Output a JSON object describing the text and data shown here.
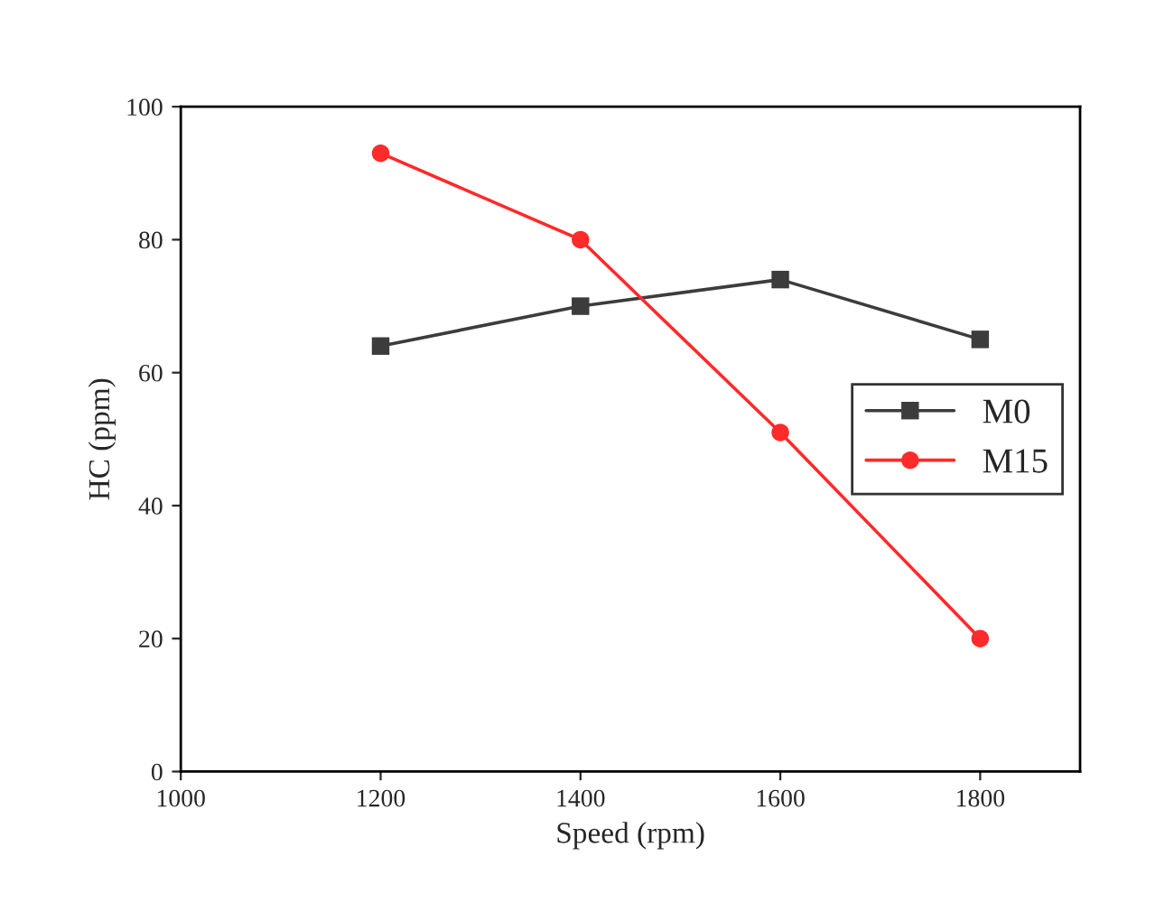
{
  "chart_data": {
    "type": "line",
    "xlabel": "Speed (rpm)",
    "ylabel": "HC (ppm)",
    "x": [
      1200,
      1400,
      1600,
      1800
    ],
    "series": [
      {
        "name": "M0",
        "color": "#3c3c3c",
        "values": [
          64,
          70,
          74,
          65
        ],
        "marker": "square"
      },
      {
        "name": "M15",
        "color": "#ff2a2a",
        "values": [
          93,
          80,
          51,
          20
        ],
        "marker": "circle"
      }
    ],
    "xlim": [
      1000,
      1900
    ],
    "xticks": [
      1000,
      1200,
      1400,
      1600,
      1800
    ],
    "ylim": [
      0,
      100
    ],
    "yticks": [
      0,
      20,
      40,
      60,
      80,
      100
    ],
    "grid": false,
    "legend": "right",
    "line_style": "solid"
  }
}
